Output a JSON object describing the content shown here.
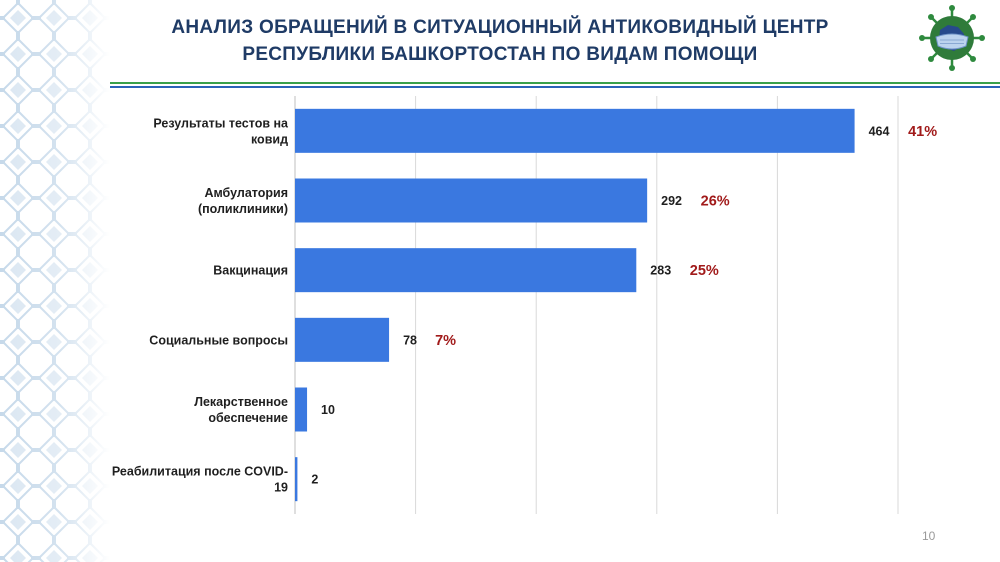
{
  "slide": {
    "title_line1": "АНАЛИЗ ОБРАЩЕНИЙ В СИТУАЦИОННЫЙ АНТИКОВИДНЫЙ ЦЕНТР",
    "title_line2": "РЕСПУБЛИКИ БАШКОРТОСТАН ПО ВИДАМ ПОМОЩИ",
    "page_number": "10"
  },
  "colors": {
    "bar": "#3a78e0",
    "title": "#1f3b66",
    "percent": "#a11a1a",
    "rule_green": "#3aa04a",
    "rule_blue": "#2b64b8"
  },
  "icons": {
    "logo": "virus-mask-map-icon",
    "ornament": "bashkir-ornament-pattern"
  },
  "chart_data": {
    "type": "bar",
    "orientation": "horizontal",
    "title": "",
    "xlabel": "",
    "ylabel": "",
    "grid": "vertical",
    "xlim": [
      0,
      500
    ],
    "categories": [
      [
        "Результаты тестов на",
        "ковид"
      ],
      [
        "Амбулатория",
        "(поликлиники)"
      ],
      [
        "Вакцинация"
      ],
      [
        "Социальные вопросы"
      ],
      [
        "Лекарственное",
        "обеспечение"
      ],
      [
        "Реабилитация после COVID-",
        "19"
      ]
    ],
    "values": [
      464,
      292,
      283,
      78,
      10,
      2
    ],
    "percent_labels": [
      "41%",
      "26%",
      "25%",
      "7%",
      "",
      ""
    ]
  }
}
